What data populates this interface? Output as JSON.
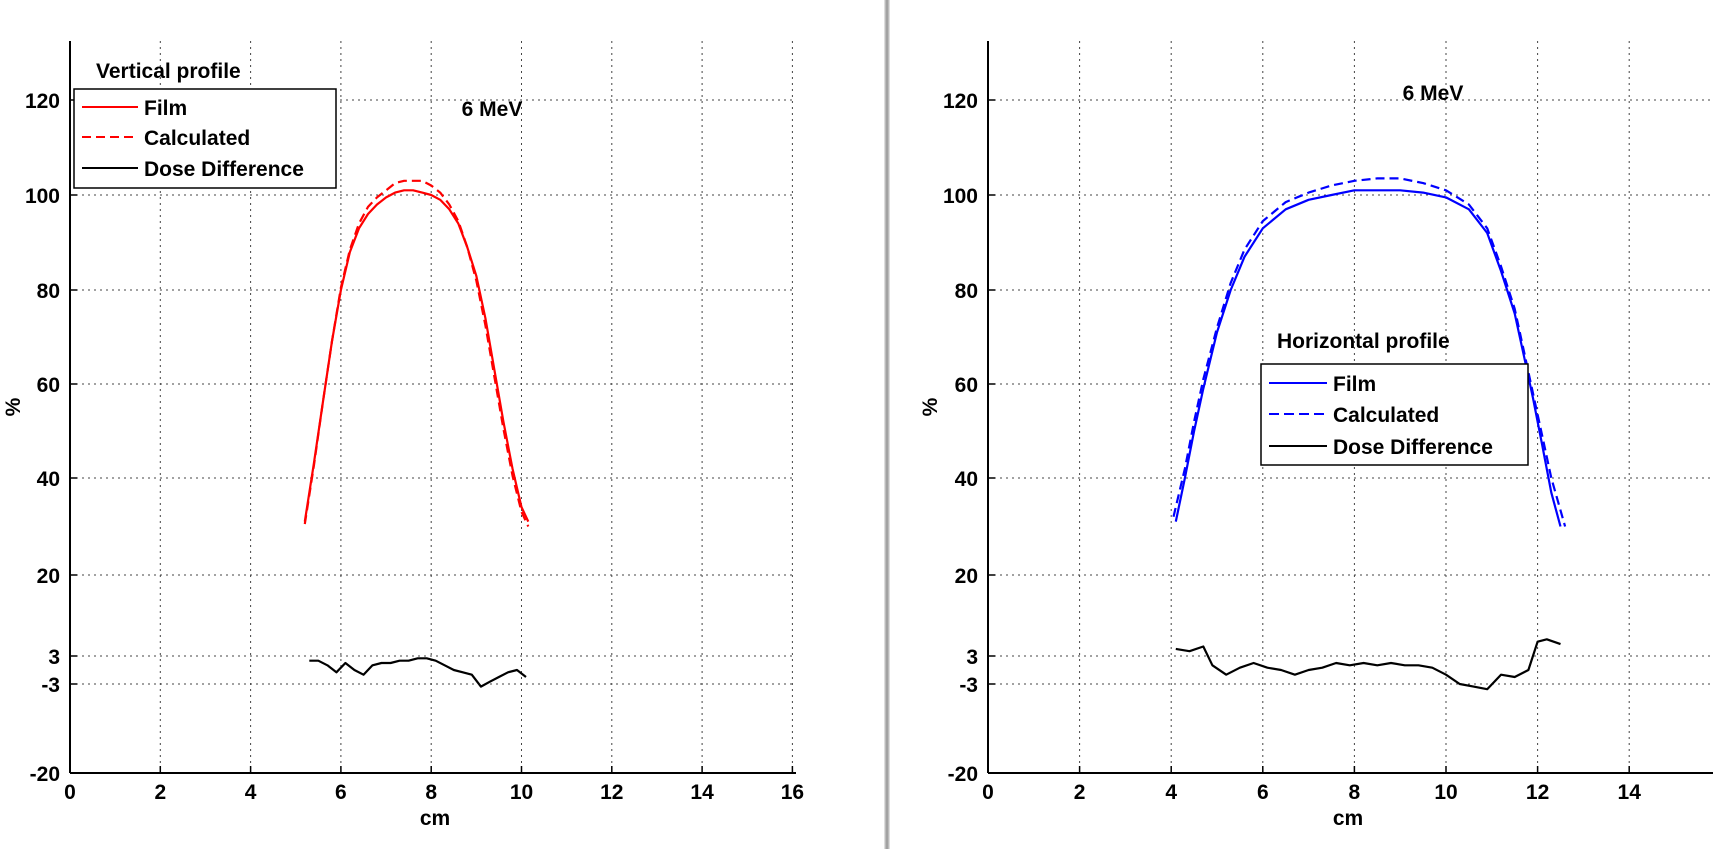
{
  "chart_data": [
    {
      "type": "line",
      "annotation": "6 MeV",
      "xlabel": "cm",
      "ylabel": "%",
      "xlim": [
        0,
        16
      ],
      "xticks": [
        0,
        2,
        4,
        6,
        8,
        10,
        12,
        14,
        16
      ],
      "yticks": [
        -20,
        -3,
        3,
        20,
        40,
        60,
        80,
        100,
        120
      ],
      "ylim": [
        -20,
        120
      ],
      "grid": true,
      "legend": {
        "title": "Vertical profile",
        "placement": "top-left",
        "entries": [
          "Film",
          "Calculated",
          "Dose Difference"
        ]
      },
      "colors": {
        "film": "#ff0000",
        "calculated": "#ff0000",
        "difference": "#000000"
      },
      "series": [
        {
          "name": "Film",
          "style": "solid",
          "x": [
            5.2,
            5.4,
            5.6,
            5.8,
            6.0,
            6.2,
            6.4,
            6.6,
            6.8,
            7.0,
            7.2,
            7.4,
            7.6,
            7.8,
            8.0,
            8.2,
            8.4,
            8.6,
            8.8,
            9.0,
            9.2,
            9.4,
            9.6,
            9.8,
            10.0,
            10.15
          ],
          "y": [
            31,
            43,
            56,
            69,
            80,
            88,
            93,
            96,
            98,
            99.5,
            100.5,
            101,
            101,
            100.5,
            100,
            99,
            97,
            94,
            89,
            83,
            74,
            63,
            52,
            42,
            34,
            31
          ]
        },
        {
          "name": "Calculated",
          "style": "dashed",
          "x": [
            5.2,
            5.4,
            5.6,
            5.8,
            6.0,
            6.2,
            6.4,
            6.6,
            6.8,
            7.0,
            7.2,
            7.4,
            7.6,
            7.8,
            8.0,
            8.2,
            8.4,
            8.6,
            8.8,
            9.0,
            9.2,
            9.4,
            9.6,
            9.8,
            10.0,
            10.15
          ],
          "y": [
            30.5,
            42.5,
            56,
            69,
            80.5,
            88.5,
            94,
            97.5,
            99.5,
            101,
            102.5,
            103,
            103,
            103,
            102,
            100.5,
            98,
            94.5,
            89,
            82,
            72.5,
            61.5,
            50.5,
            40.5,
            33,
            30
          ]
        },
        {
          "name": "Dose Difference",
          "style": "solid",
          "x": [
            5.3,
            5.5,
            5.7,
            5.9,
            6.1,
            6.3,
            6.5,
            6.7,
            6.9,
            7.1,
            7.3,
            7.5,
            7.7,
            7.9,
            8.1,
            8.3,
            8.5,
            8.7,
            8.9,
            9.1,
            9.3,
            9.5,
            9.7,
            9.9,
            10.1
          ],
          "y": [
            2.0,
            2.0,
            1.0,
            -0.5,
            1.5,
            0,
            -1.0,
            1.0,
            1.5,
            1.5,
            2.0,
            2.0,
            2.5,
            2.5,
            2.0,
            1.0,
            0,
            -0.5,
            -1.0,
            -3.5,
            -2.5,
            -1.5,
            -0.5,
            0,
            -1.5
          ]
        }
      ]
    },
    {
      "type": "line",
      "annotation": "6 MeV",
      "xlabel": "cm",
      "ylabel": "%",
      "xlim": [
        0,
        15
      ],
      "xticks": [
        0,
        2,
        4,
        6,
        8,
        10,
        12,
        14
      ],
      "yticks": [
        -20,
        -3,
        3,
        20,
        40,
        60,
        80,
        100,
        120
      ],
      "ylim": [
        -20,
        120
      ],
      "grid": true,
      "legend": {
        "title": "Horizontal profile",
        "placement": "center",
        "entries": [
          "Film",
          "Calculated",
          "Dose Difference"
        ]
      },
      "colors": {
        "film": "#0000ff",
        "calculated": "#0000ff",
        "difference": "#000000"
      },
      "series": [
        {
          "name": "Film",
          "style": "solid",
          "x": [
            4.1,
            4.3,
            4.5,
            4.7,
            5.0,
            5.3,
            5.6,
            6.0,
            6.5,
            7.0,
            7.5,
            8.0,
            8.5,
            9.0,
            9.5,
            10.0,
            10.5,
            10.9,
            11.2,
            11.5,
            11.7,
            11.9,
            12.1,
            12.3,
            12.5
          ],
          "y": [
            31,
            40,
            50,
            59,
            71,
            80,
            87,
            93,
            97,
            99,
            100,
            101,
            101,
            101,
            100.5,
            99.5,
            97,
            92,
            84,
            75,
            66,
            57,
            47,
            37,
            30
          ]
        },
        {
          "name": "Calculated",
          "style": "dashed",
          "x": [
            4.05,
            4.3,
            4.5,
            4.7,
            5.0,
            5.3,
            5.6,
            6.0,
            6.5,
            7.0,
            7.5,
            8.0,
            8.5,
            9.0,
            9.5,
            10.0,
            10.5,
            10.9,
            11.2,
            11.5,
            11.7,
            11.9,
            12.1,
            12.3,
            12.6
          ],
          "y": [
            32,
            42,
            52,
            61,
            72,
            81.5,
            88.5,
            94.5,
            98.5,
            100.5,
            102,
            103,
            103.5,
            103.5,
            102.5,
            101,
            98,
            93,
            85,
            76,
            67,
            58,
            49,
            40,
            30
          ]
        },
        {
          "name": "Dose Difference",
          "style": "solid",
          "x": [
            4.1,
            4.4,
            4.7,
            4.9,
            5.2,
            5.5,
            5.8,
            6.1,
            6.4,
            6.7,
            7.0,
            7.3,
            7.6,
            7.9,
            8.2,
            8.5,
            8.8,
            9.1,
            9.4,
            9.7,
            10.0,
            10.3,
            10.6,
            10.9,
            11.2,
            11.5,
            11.8,
            12.0,
            12.2,
            12.5
          ],
          "y": [
            4.5,
            4.0,
            5.0,
            1.0,
            -1.0,
            0.5,
            1.5,
            0.5,
            0,
            -1.0,
            0,
            0.5,
            1.5,
            1.0,
            1.5,
            1.0,
            1.5,
            1.0,
            1.0,
            0.5,
            -1.0,
            -3.0,
            -3.5,
            -4.0,
            -1.0,
            -1.5,
            0,
            6.0,
            6.5,
            5.5
          ]
        }
      ]
    }
  ]
}
